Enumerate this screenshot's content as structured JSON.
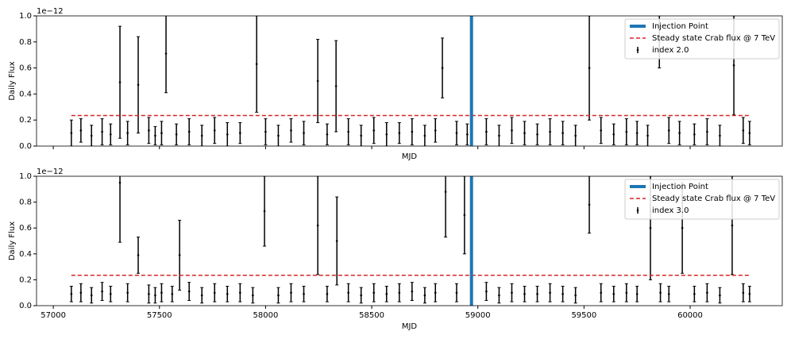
{
  "chart_data": [
    {
      "type": "errorbar",
      "xlabel": "MJD",
      "ylabel": "Daily Flux",
      "y_offset_text": "1e−12",
      "xlim": [
        56921,
        60434
      ],
      "ylim": [
        0,
        1
      ],
      "show_xticklabels": false,
      "xticks": [
        57000,
        57500,
        58000,
        58500,
        59000,
        59500,
        60000
      ],
      "yticks": [
        {
          "value": 0,
          "label": "0.0"
        },
        0.2,
        0.4,
        0.6,
        0.8,
        {
          "value": 1,
          "label": "1.0"
        }
      ],
      "injection": {
        "name": "Injection Point",
        "x": 58970,
        "color": "#1f77b4"
      },
      "reference": {
        "name": "Steady state Crab flux @ 7 TeV",
        "value": 0.235,
        "color": "#d62728"
      },
      "legend": "upper right",
      "series": [
        {
          "name": "index 2.0",
          "color": "#000000",
          "x": [
            57085,
            57130,
            57180,
            57230,
            57270,
            57314,
            57350,
            57400,
            57450,
            57480,
            57510,
            57531,
            57580,
            57640,
            57700,
            57760,
            57820,
            57880,
            57958,
            58000,
            58060,
            58120,
            58180,
            58246,
            58290,
            58332,
            58390,
            58450,
            58510,
            58570,
            58630,
            58690,
            58750,
            58800,
            58833,
            58900,
            58950,
            59040,
            59100,
            59160,
            59220,
            59280,
            59340,
            59400,
            59460,
            59525,
            59580,
            59640,
            59700,
            59750,
            59800,
            59855,
            59900,
            59950,
            60020,
            60080,
            60140,
            60206,
            60250,
            60280
          ],
          "values": [
            0.1,
            0.12,
            0.08,
            0.11,
            0.09,
            0.49,
            0.1,
            0.47,
            0.12,
            0.08,
            0.1,
            0.71,
            0.09,
            0.11,
            0.08,
            0.12,
            0.09,
            0.1,
            0.63,
            0.11,
            0.08,
            0.12,
            0.1,
            0.5,
            0.09,
            0.46,
            0.11,
            0.08,
            0.12,
            0.09,
            0.1,
            0.11,
            0.08,
            0.12,
            0.6,
            0.1,
            0.09,
            0.11,
            0.08,
            0.12,
            0.1,
            0.09,
            0.11,
            0.1,
            0.08,
            0.6,
            0.12,
            0.09,
            0.11,
            0.1,
            0.08,
            0.8,
            0.12,
            0.1,
            0.09,
            0.11,
            0.08,
            0.62,
            0.12,
            0.1
          ],
          "errors": [
            0.1,
            0.09,
            0.08,
            0.1,
            0.08,
            0.43,
            0.09,
            0.37,
            0.1,
            0.07,
            0.09,
            0.3,
            0.08,
            0.1,
            0.08,
            0.1,
            0.09,
            0.08,
            0.37,
            0.1,
            0.08,
            0.09,
            0.09,
            0.32,
            0.08,
            0.35,
            0.1,
            0.08,
            0.1,
            0.09,
            0.08,
            0.1,
            0.08,
            0.09,
            0.23,
            0.09,
            0.08,
            0.1,
            0.08,
            0.1,
            0.09,
            0.08,
            0.1,
            0.09,
            0.08,
            0.4,
            0.1,
            0.08,
            0.1,
            0.09,
            0.08,
            0.2,
            0.1,
            0.09,
            0.08,
            0.1,
            0.08,
            0.38,
            0.1,
            0.09
          ]
        }
      ]
    },
    {
      "type": "errorbar",
      "xlabel": "MJD",
      "ylabel": "Daily Flux",
      "y_offset_text": "1e−12",
      "xlim": [
        56921,
        60434
      ],
      "ylim": [
        0,
        1
      ],
      "show_xticklabels": true,
      "xticks": [
        57000,
        57500,
        58000,
        58500,
        59000,
        59500,
        60000
      ],
      "yticks": [
        {
          "value": 0,
          "label": "0.0"
        },
        0.2,
        0.4,
        0.6,
        0.8,
        {
          "value": 1,
          "label": "1.0"
        }
      ],
      "injection": {
        "name": "Injection Point",
        "x": 58970,
        "color": "#1f77b4"
      },
      "reference": {
        "name": "Steady state Crab flux @ 7 TeV",
        "value": 0.235,
        "color": "#d62728"
      },
      "legend": "upper right",
      "series": [
        {
          "name": "index 3.0",
          "color": "#000000",
          "x": [
            57085,
            57130,
            57180,
            57230,
            57270,
            57314,
            57350,
            57400,
            57450,
            57480,
            57510,
            57560,
            57595,
            57640,
            57700,
            57760,
            57820,
            57880,
            57940,
            57995,
            58060,
            58120,
            58180,
            58246,
            58290,
            58336,
            58390,
            58450,
            58510,
            58570,
            58630,
            58690,
            58750,
            58800,
            58848,
            58900,
            58937,
            59040,
            59100,
            59160,
            59220,
            59280,
            59340,
            59400,
            59460,
            59525,
            59580,
            59640,
            59700,
            59750,
            59813,
            59860,
            59900,
            59963,
            60020,
            60080,
            60140,
            60198,
            60250,
            60280
          ],
          "values": [
            0.09,
            0.1,
            0.08,
            0.11,
            0.09,
            0.95,
            0.1,
            0.39,
            0.09,
            0.08,
            0.1,
            0.09,
            0.39,
            0.11,
            0.08,
            0.1,
            0.09,
            0.1,
            0.08,
            0.73,
            0.08,
            0.1,
            0.09,
            0.62,
            0.09,
            0.5,
            0.1,
            0.08,
            0.1,
            0.09,
            0.1,
            0.11,
            0.08,
            0.1,
            0.88,
            0.1,
            0.7,
            0.11,
            0.08,
            0.1,
            0.09,
            0.09,
            0.1,
            0.09,
            0.08,
            0.78,
            0.1,
            0.09,
            0.1,
            0.09,
            0.6,
            0.1,
            0.09,
            0.6,
            0.09,
            0.1,
            0.08,
            0.62,
            0.1,
            0.09
          ],
          "errors": [
            0.06,
            0.07,
            0.06,
            0.07,
            0.06,
            0.46,
            0.07,
            0.14,
            0.07,
            0.06,
            0.07,
            0.06,
            0.27,
            0.07,
            0.06,
            0.07,
            0.06,
            0.07,
            0.06,
            0.27,
            0.06,
            0.07,
            0.06,
            0.38,
            0.06,
            0.34,
            0.07,
            0.06,
            0.07,
            0.06,
            0.07,
            0.07,
            0.06,
            0.07,
            0.35,
            0.07,
            0.3,
            0.07,
            0.06,
            0.07,
            0.06,
            0.06,
            0.07,
            0.06,
            0.06,
            0.22,
            0.07,
            0.06,
            0.07,
            0.06,
            0.4,
            0.07,
            0.06,
            0.35,
            0.06,
            0.07,
            0.06,
            0.38,
            0.07,
            0.06
          ]
        }
      ]
    }
  ]
}
